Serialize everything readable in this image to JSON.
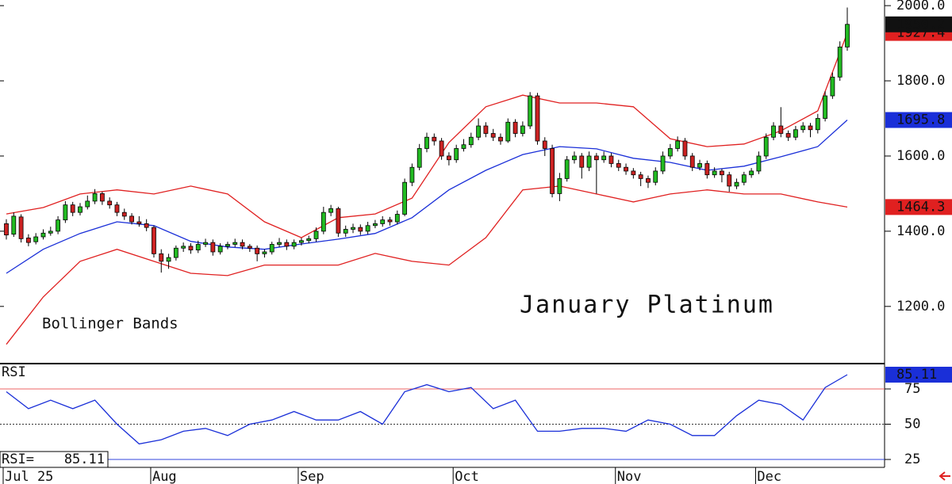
{
  "chart_data": {
    "type": "candlestick",
    "title": "January Platinum",
    "annotation": "Bollinger Bands",
    "categories": [
      "Jul 25",
      null,
      null,
      null,
      null,
      null,
      null,
      null,
      null,
      null,
      null,
      null,
      null,
      null,
      null,
      null,
      null,
      null,
      null,
      null,
      "Aug",
      null,
      null,
      null,
      null,
      null,
      null,
      null,
      null,
      null,
      null,
      null,
      null,
      null,
      null,
      null,
      null,
      null,
      null,
      null,
      "Sep",
      null,
      null,
      null,
      null,
      null,
      null,
      null,
      null,
      null,
      null,
      null,
      null,
      null,
      null,
      null,
      null,
      null,
      null,
      null,
      null,
      "Oct",
      null,
      null,
      null,
      null,
      null,
      null,
      null,
      null,
      null,
      null,
      null,
      null,
      null,
      null,
      null,
      null,
      null,
      null,
      null,
      null,
      null,
      "Nov",
      null,
      null,
      null,
      null,
      null,
      null,
      null,
      null,
      null,
      null,
      null,
      null,
      null,
      null,
      null,
      null,
      null,
      null,
      "Dec",
      null,
      null,
      null,
      null,
      null,
      null,
      null,
      null,
      null,
      null,
      null,
      null
    ],
    "ohlc": [
      [
        1420,
        1432,
        1378,
        1390
      ],
      [
        1392,
        1450,
        1385,
        1440
      ],
      [
        1438,
        1445,
        1370,
        1380
      ],
      [
        1382,
        1392,
        1360,
        1370
      ],
      [
        1372,
        1395,
        1365,
        1385
      ],
      [
        1385,
        1405,
        1378,
        1395
      ],
      [
        1395,
        1412,
        1388,
        1400
      ],
      [
        1400,
        1440,
        1392,
        1430
      ],
      [
        1430,
        1480,
        1422,
        1470
      ],
      [
        1470,
        1478,
        1440,
        1450
      ],
      [
        1450,
        1475,
        1442,
        1465
      ],
      [
        1465,
        1495,
        1458,
        1480
      ],
      [
        1480,
        1512,
        1472,
        1500
      ],
      [
        1500,
        1505,
        1470,
        1480
      ],
      [
        1480,
        1490,
        1460,
        1470
      ],
      [
        1470,
        1478,
        1440,
        1450
      ],
      [
        1450,
        1460,
        1430,
        1440
      ],
      [
        1440,
        1448,
        1418,
        1425
      ],
      [
        1425,
        1440,
        1412,
        1420
      ],
      [
        1420,
        1432,
        1400,
        1410
      ],
      [
        1410,
        1415,
        1330,
        1340
      ],
      [
        1340,
        1352,
        1290,
        1320
      ],
      [
        1320,
        1340,
        1300,
        1330
      ],
      [
        1330,
        1362,
        1322,
        1355
      ],
      [
        1355,
        1370,
        1345,
        1360
      ],
      [
        1360,
        1368,
        1340,
        1350
      ],
      [
        1350,
        1375,
        1342,
        1365
      ],
      [
        1365,
        1380,
        1358,
        1370
      ],
      [
        1370,
        1378,
        1335,
        1345
      ],
      [
        1345,
        1368,
        1338,
        1360
      ],
      [
        1360,
        1372,
        1352,
        1365
      ],
      [
        1365,
        1380,
        1358,
        1370
      ],
      [
        1370,
        1378,
        1352,
        1360
      ],
      [
        1360,
        1366,
        1345,
        1355
      ],
      [
        1355,
        1362,
        1320,
        1340
      ],
      [
        1340,
        1352,
        1330,
        1345
      ],
      [
        1345,
        1372,
        1338,
        1365
      ],
      [
        1365,
        1382,
        1358,
        1370
      ],
      [
        1370,
        1378,
        1350,
        1360
      ],
      [
        1360,
        1378,
        1352,
        1370
      ],
      [
        1370,
        1382,
        1362,
        1375
      ],
      [
        1375,
        1388,
        1368,
        1380
      ],
      [
        1380,
        1410,
        1372,
        1400
      ],
      [
        1400,
        1465,
        1392,
        1450
      ],
      [
        1450,
        1470,
        1440,
        1460
      ],
      [
        1460,
        1465,
        1385,
        1395
      ],
      [
        1395,
        1415,
        1385,
        1405
      ],
      [
        1405,
        1420,
        1395,
        1410
      ],
      [
        1410,
        1418,
        1390,
        1400
      ],
      [
        1400,
        1425,
        1392,
        1415
      ],
      [
        1415,
        1430,
        1408,
        1420
      ],
      [
        1420,
        1440,
        1412,
        1430
      ],
      [
        1430,
        1438,
        1415,
        1425
      ],
      [
        1425,
        1455,
        1418,
        1445
      ],
      [
        1445,
        1540,
        1440,
        1530
      ],
      [
        1530,
        1580,
        1520,
        1570
      ],
      [
        1570,
        1632,
        1562,
        1620
      ],
      [
        1620,
        1662,
        1610,
        1650
      ],
      [
        1650,
        1660,
        1628,
        1640
      ],
      [
        1640,
        1648,
        1590,
        1600
      ],
      [
        1600,
        1610,
        1575,
        1590
      ],
      [
        1590,
        1630,
        1582,
        1620
      ],
      [
        1620,
        1645,
        1612,
        1630
      ],
      [
        1630,
        1662,
        1622,
        1650
      ],
      [
        1650,
        1700,
        1642,
        1680
      ],
      [
        1680,
        1690,
        1650,
        1660
      ],
      [
        1660,
        1672,
        1640,
        1650
      ],
      [
        1650,
        1660,
        1630,
        1640
      ],
      [
        1640,
        1700,
        1635,
        1690
      ],
      [
        1690,
        1698,
        1650,
        1660
      ],
      [
        1660,
        1692,
        1652,
        1680
      ],
      [
        1680,
        1770,
        1672,
        1760
      ],
      [
        1760,
        1768,
        1630,
        1640
      ],
      [
        1640,
        1650,
        1600,
        1620
      ],
      [
        1620,
        1630,
        1490,
        1500
      ],
      [
        1500,
        1555,
        1480,
        1540
      ],
      [
        1540,
        1600,
        1532,
        1590
      ],
      [
        1590,
        1612,
        1580,
        1600
      ],
      [
        1600,
        1608,
        1540,
        1570
      ],
      [
        1570,
        1612,
        1560,
        1600
      ],
      [
        1600,
        1608,
        1500,
        1590
      ],
      [
        1590,
        1612,
        1582,
        1600
      ],
      [
        1600,
        1608,
        1570,
        1580
      ],
      [
        1580,
        1590,
        1560,
        1570
      ],
      [
        1570,
        1580,
        1550,
        1560
      ],
      [
        1560,
        1568,
        1540,
        1550
      ],
      [
        1550,
        1558,
        1520,
        1540
      ],
      [
        1540,
        1548,
        1515,
        1530
      ],
      [
        1530,
        1570,
        1522,
        1560
      ],
      [
        1560,
        1612,
        1552,
        1600
      ],
      [
        1600,
        1632,
        1592,
        1620
      ],
      [
        1620,
        1652,
        1612,
        1640
      ],
      [
        1640,
        1648,
        1590,
        1600
      ],
      [
        1600,
        1608,
        1560,
        1570
      ],
      [
        1570,
        1590,
        1562,
        1580
      ],
      [
        1580,
        1588,
        1540,
        1550
      ],
      [
        1550,
        1570,
        1542,
        1560
      ],
      [
        1560,
        1566,
        1530,
        1550
      ],
      [
        1550,
        1558,
        1505,
        1520
      ],
      [
        1520,
        1540,
        1512,
        1530
      ],
      [
        1530,
        1558,
        1522,
        1550
      ],
      [
        1550,
        1568,
        1542,
        1560
      ],
      [
        1560,
        1612,
        1552,
        1600
      ],
      [
        1600,
        1660,
        1592,
        1650
      ],
      [
        1650,
        1690,
        1642,
        1680
      ],
      [
        1680,
        1730,
        1650,
        1660
      ],
      [
        1660,
        1668,
        1640,
        1650
      ],
      [
        1650,
        1680,
        1642,
        1670
      ],
      [
        1670,
        1690,
        1662,
        1680
      ],
      [
        1680,
        1688,
        1650,
        1670
      ],
      [
        1670,
        1712,
        1660,
        1700
      ],
      [
        1700,
        1772,
        1692,
        1760
      ],
      [
        1760,
        1822,
        1752,
        1810
      ],
      [
        1810,
        1905,
        1800,
        1890
      ],
      [
        1890,
        1995,
        1880,
        1950.2
      ]
    ],
    "up_color": "#22bb22",
    "down_color": "#cc2222",
    "ylim": [
      1050,
      2015
    ],
    "yticks": [
      {
        "value": 1200,
        "label": "1200.0"
      },
      {
        "value": 1400,
        "label": "1400.0"
      },
      {
        "value": 1600,
        "label": "1600.0"
      },
      {
        "value": 1800,
        "label": "1800.0"
      },
      {
        "value": 2000,
        "label": "2000.0"
      }
    ],
    "band_x": [
      0,
      5,
      10,
      15,
      20,
      25,
      30,
      35,
      40,
      45,
      50,
      55,
      60,
      65,
      70,
      75,
      80,
      85,
      90,
      95,
      100,
      105,
      110,
      114
    ],
    "upper_band": {
      "color": "#e02020",
      "values": [
        1446,
        1463,
        1499,
        1510,
        1499,
        1520,
        1499,
        1425,
        1383,
        1436,
        1446,
        1488,
        1636,
        1731,
        1762,
        1741,
        1741,
        1731,
        1646,
        1625,
        1632,
        1667,
        1720,
        1927.4
      ]
    },
    "middle_band": {
      "color": "#1a2fd8",
      "values": [
        1288,
        1352,
        1394,
        1425,
        1415,
        1373,
        1358,
        1352,
        1366,
        1379,
        1394,
        1436,
        1510,
        1562,
        1604,
        1625,
        1619,
        1594,
        1583,
        1562,
        1573,
        1598,
        1625,
        1695.8
      ]
    },
    "lower_band": {
      "color": "#e02020",
      "values": [
        1099,
        1225,
        1320,
        1352,
        1320,
        1288,
        1282,
        1310,
        1310,
        1310,
        1341,
        1320,
        1310,
        1383,
        1510,
        1520,
        1499,
        1478,
        1499,
        1510,
        1499,
        1499,
        1478,
        1464.3
      ]
    },
    "rsi": {
      "label": "RSI",
      "readout_label": "RSI=",
      "color": "#1a2fd8",
      "x": [
        0,
        3,
        6,
        9,
        12,
        15,
        18,
        21,
        24,
        27,
        30,
        33,
        36,
        39,
        42,
        45,
        48,
        51,
        54,
        57,
        60,
        63,
        66,
        69,
        72,
        75,
        78,
        81,
        84,
        87,
        90,
        93,
        96,
        99,
        102,
        105,
        108,
        111,
        114
      ],
      "values": [
        73,
        61,
        67,
        61,
        67,
        50,
        36,
        39,
        45,
        47,
        42,
        50,
        53,
        59,
        53,
        53,
        59,
        50,
        73,
        78,
        73,
        76,
        61,
        67,
        45,
        45,
        47,
        47,
        45,
        53,
        50,
        42,
        42,
        56,
        67,
        64,
        53,
        76,
        85.11
      ],
      "ylim": [
        19.4,
        92.4
      ],
      "yticks": [
        25,
        50,
        75
      ],
      "level_colors": [
        "#3344dd",
        "#333333",
        "#ee6666"
      ]
    }
  }
}
